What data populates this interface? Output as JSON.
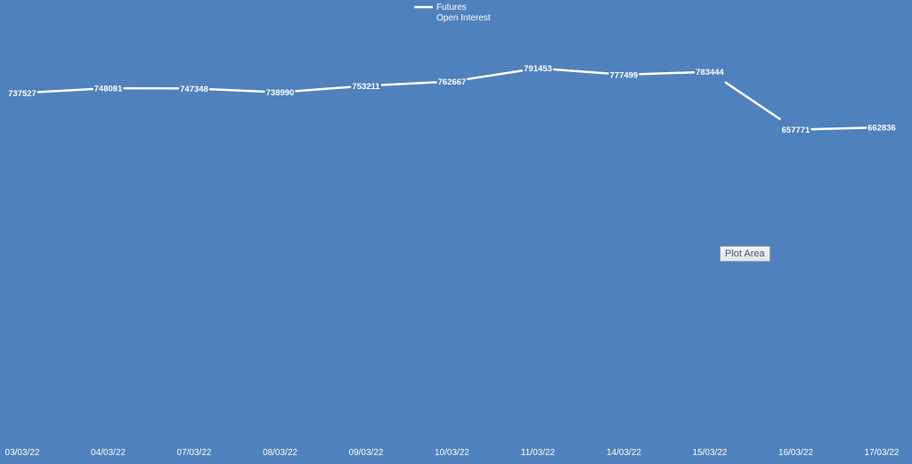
{
  "chart_data": {
    "type": "line",
    "categories": [
      "03/03/22",
      "04/03/22",
      "07/03/22",
      "08/03/22",
      "09/03/22",
      "10/03/22",
      "11/03/22",
      "14/03/22",
      "15/03/22",
      "16/03/22",
      "17/03/22"
    ],
    "series": [
      {
        "name": "Futures Open Interest",
        "values": [
          737527,
          748081,
          747348,
          738990,
          753211,
          762667,
          791453,
          777499,
          783444,
          657771,
          662836
        ]
      }
    ],
    "legend": {
      "lines": [
        "Futures",
        "Open Interest"
      ],
      "placement": "top-center"
    },
    "ylim": [
      0,
      800000
    ],
    "grid": false,
    "drop_lines": true,
    "data_labels": true,
    "colors": {
      "background": "#4f81bd",
      "line": "#ffffff",
      "text": "#ffffff"
    }
  },
  "tooltip": {
    "text": "Plot Area"
  }
}
